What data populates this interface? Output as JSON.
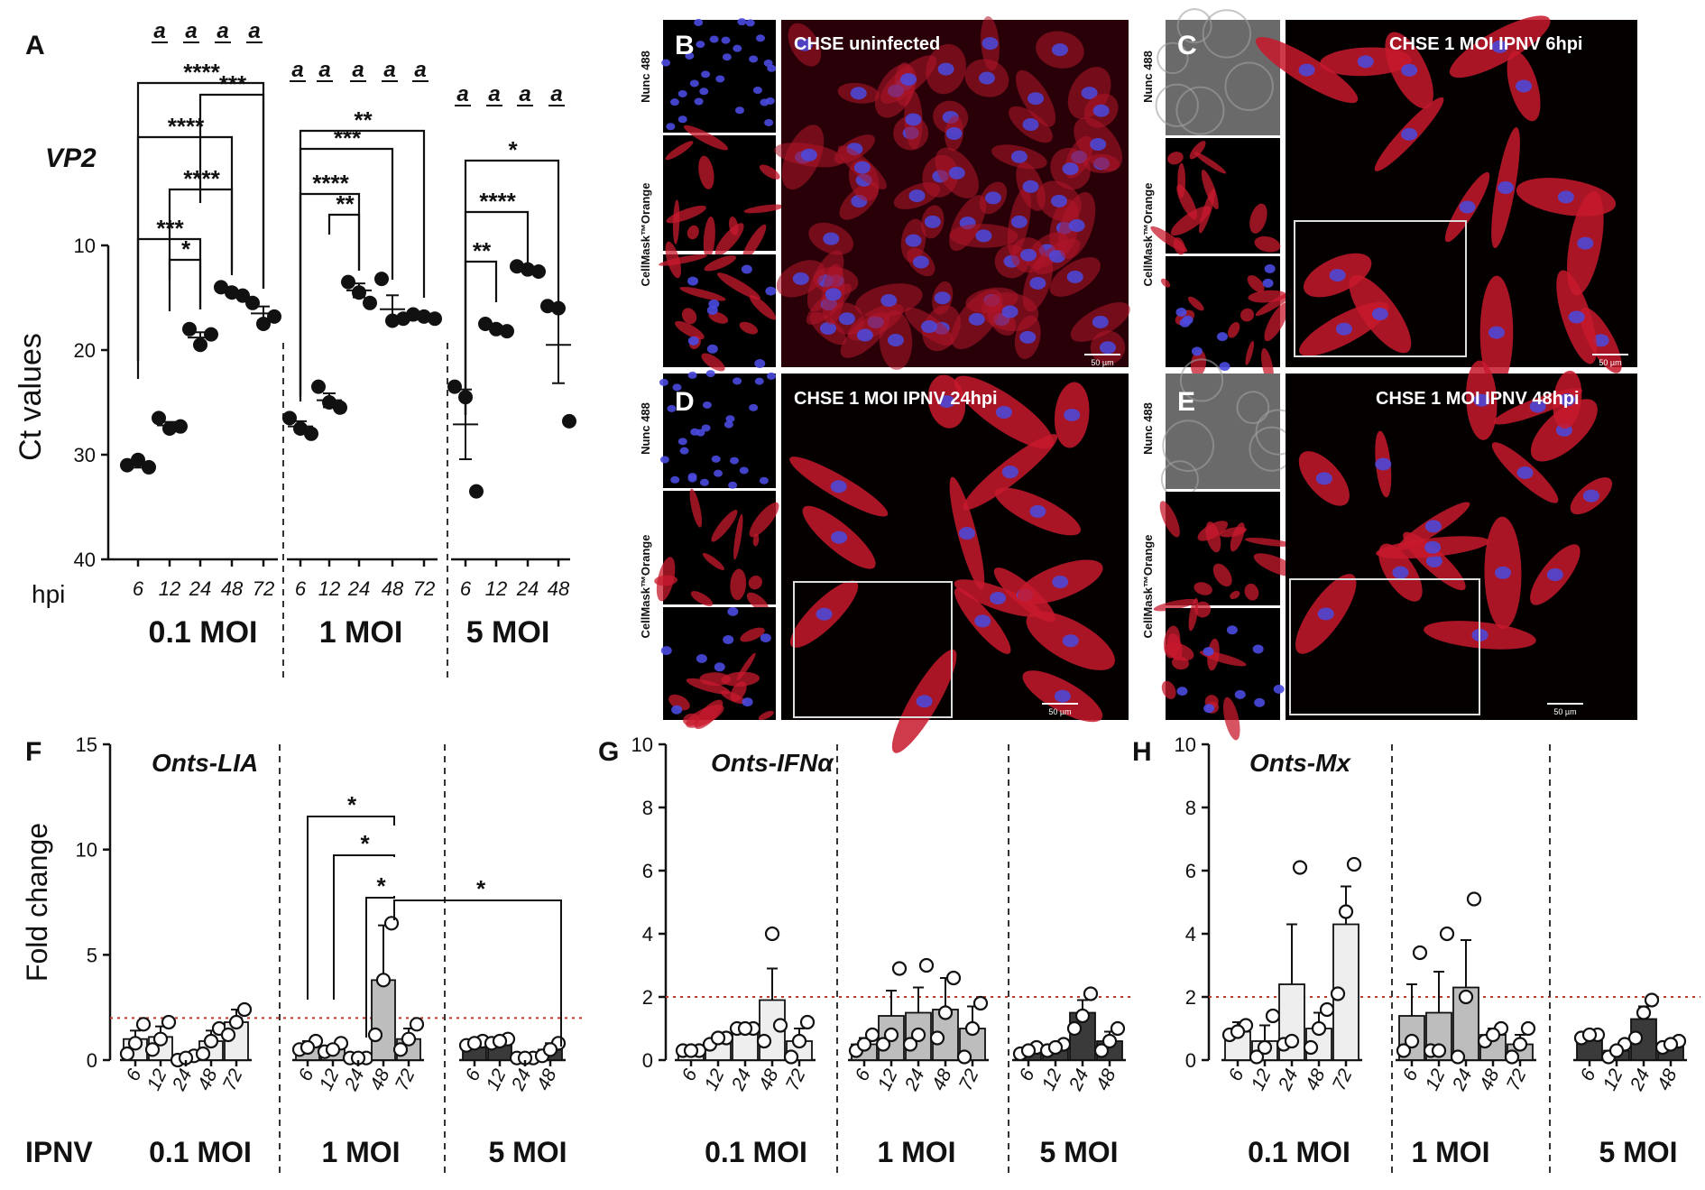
{
  "panel_letters": {
    "A": "A",
    "B": "B",
    "C": "C",
    "D": "D",
    "E": "E",
    "F": "F",
    "G": "G",
    "H": "H"
  },
  "colors": {
    "point": "#111111",
    "bar_01": "#eeeeee",
    "bar_1": "#bdbdbd",
    "bar_5": "#3a3a3a",
    "threshold": "#c0392b",
    "cell_red": "#c8192d",
    "nucleus_blue": "#4a4ae0"
  },
  "chart_data": [
    {
      "id": "A",
      "type": "scatter",
      "title": "VP2",
      "ylabel": "Ct values",
      "ylim": [
        40,
        10
      ],
      "yticks": [
        "10",
        "20",
        "30",
        "40"
      ],
      "x_prefix": "hpi",
      "grid": false,
      "groups": [
        {
          "label": "0.1 MOI",
          "timepoints": [
            "6",
            "12",
            "24",
            "48",
            "72"
          ],
          "points": [
            [
              31,
              30.5,
              31.2
            ],
            [
              26.5,
              27.5,
              27.3
            ],
            [
              18,
              19.5,
              18.5
            ],
            [
              14,
              14.5,
              14.8
            ],
            [
              15.5,
              17.5,
              16.8
            ]
          ],
          "means": [
            31,
            27.2,
            18.8,
            14.5,
            16.5
          ]
        },
        {
          "label": "1 MOI",
          "timepoints": [
            "6",
            "12",
            "24",
            "48",
            "72"
          ],
          "points": [
            [
              26.5,
              27.5,
              28
            ],
            [
              23.5,
              25,
              25.5
            ],
            [
              13.5,
              14.5,
              15.5
            ],
            [
              13.2,
              17.2,
              17
            ],
            [
              16.6,
              16.8,
              17
            ]
          ],
          "means": [
            27.3,
            24.8,
            14.3,
            16.1,
            16.8
          ]
        },
        {
          "label": "5 MOI",
          "timepoints": [
            "6",
            "12",
            "24",
            "48"
          ],
          "points": [
            [
              23.5,
              24.5,
              33.5
            ],
            [
              17.5,
              18,
              18.2
            ],
            [
              12,
              12.3,
              12.5
            ],
            [
              15.8,
              16,
              26.8
            ]
          ],
          "means": [
            27.1,
            17.9,
            12.3,
            19.5
          ]
        }
      ],
      "significance_marks": [
        "a",
        "a",
        "a",
        "a",
        "a",
        "a",
        "a",
        "a",
        "a",
        "a",
        "a",
        "a",
        "a"
      ],
      "brackets_labels": [
        "****",
        "***",
        "****",
        "****",
        "***",
        "*",
        "**",
        "***",
        "****",
        "**",
        "*",
        "****",
        "**"
      ]
    },
    {
      "id": "F",
      "type": "bar",
      "title": "Onts-LIA",
      "ylabel": "Fold change",
      "ylim": [
        0,
        15
      ],
      "yticks": [
        "0",
        "5",
        "10",
        "15"
      ],
      "threshold": 2,
      "row_label": "IPNV",
      "groups": [
        {
          "label": "0.1 MOI",
          "timepoints": [
            "6",
            "12",
            "24",
            "48",
            "72"
          ],
          "means": [
            1,
            1.1,
            0.1,
            0.9,
            1.8
          ],
          "err": [
            0.4,
            0.5,
            0.1,
            0.5,
            0.6
          ],
          "points": [
            [
              0.3,
              1.7,
              0.8
            ],
            [
              0.5,
              1.8,
              1.0
            ],
            [
              0,
              0.2,
              0.1
            ],
            [
              0.3,
              1.5,
              0.9
            ],
            [
              1.2,
              2.4,
              1.8
            ]
          ]
        },
        {
          "label": "1 MOI",
          "timepoints": [
            "6",
            "12",
            "24",
            "48",
            "72"
          ],
          "means": [
            0.7,
            0.6,
            0.1,
            3.8,
            1.0
          ],
          "err": [
            0.2,
            0.1,
            0.05,
            2.6,
            0.5
          ],
          "points": [
            [
              0.5,
              0.9,
              0.6
            ],
            [
              0.4,
              0.8,
              0.5
            ],
            [
              0.1,
              0.1,
              0.1
            ],
            [
              1.2,
              6.5,
              3.8
            ],
            [
              0.5,
              1.7,
              1.0
            ]
          ]
        },
        {
          "label": "5 MOI",
          "timepoints": [
            "6",
            "12",
            "24",
            "48"
          ],
          "means": [
            0.8,
            0.9,
            0.1,
            0.5
          ],
          "err": [
            0.1,
            0.1,
            0.05,
            0.3
          ],
          "points": [
            [
              0.7,
              0.9,
              0.8
            ],
            [
              0.8,
              1.0,
              0.9
            ],
            [
              0.1,
              0.1,
              0.1
            ],
            [
              0.2,
              0.8,
              0.5
            ]
          ]
        }
      ],
      "brackets_labels": [
        "*",
        "*",
        "*",
        "*"
      ]
    },
    {
      "id": "G",
      "type": "bar",
      "title": "Onts-IFNα",
      "ylabel": "",
      "ylim": [
        0,
        10
      ],
      "yticks": [
        "0",
        "2",
        "4",
        "6",
        "8",
        "10"
      ],
      "threshold": 2,
      "groups": [
        {
          "label": "0.1 MOI",
          "timepoints": [
            "6",
            "12",
            "24",
            "48",
            "72"
          ],
          "means": [
            0.3,
            0.6,
            1.0,
            1.9,
            0.6
          ],
          "err": [
            0.05,
            0.1,
            0.05,
            1.0,
            0.4
          ],
          "points": [
            [
              0.3,
              0.3,
              0.3
            ],
            [
              0.5,
              0.7,
              0.7
            ],
            [
              1.0,
              1.0,
              1.0
            ],
            [
              0.6,
              1.1,
              4.0
            ],
            [
              0.1,
              1.2,
              0.6
            ]
          ]
        },
        {
          "label": "1 MOI",
          "timepoints": [
            "6",
            "12",
            "24",
            "48",
            "72"
          ],
          "means": [
            0.5,
            1.4,
            1.5,
            1.6,
            1.0
          ],
          "err": [
            0.2,
            0.8,
            0.8,
            1.0,
            0.7
          ],
          "points": [
            [
              0.3,
              0.8,
              0.5
            ],
            [
              0.5,
              2.9,
              0.8
            ],
            [
              0.5,
              3.0,
              0.8
            ],
            [
              0.7,
              2.6,
              1.5
            ],
            [
              0.1,
              1.8,
              1.0
            ]
          ]
        },
        {
          "label": "5 MOI",
          "timepoints": [
            "6",
            "12",
            "24",
            "48"
          ],
          "means": [
            0.3,
            0.4,
            1.5,
            0.6
          ],
          "err": [
            0.1,
            0.1,
            0.4,
            0.3
          ],
          "points": [
            [
              0.2,
              0.4,
              0.3
            ],
            [
              0.3,
              0.5,
              0.4
            ],
            [
              1.0,
              2.1,
              1.4
            ],
            [
              0.3,
              1.0,
              0.6
            ]
          ]
        }
      ]
    },
    {
      "id": "H",
      "type": "bar",
      "title": "Onts-Mx",
      "ylabel": "",
      "ylim": [
        0,
        10
      ],
      "yticks": [
        "0",
        "2",
        "4",
        "6",
        "8",
        "10"
      ],
      "threshold": 2,
      "groups": [
        {
          "label": "0.1 MOI",
          "timepoints": [
            "6",
            "12",
            "24",
            "48",
            "72"
          ],
          "means": [
            0.9,
            0.6,
            2.4,
            1.0,
            4.3
          ],
          "err": [
            0.3,
            0.5,
            1.9,
            0.5,
            1.2
          ],
          "points": [
            [
              0.8,
              1.1,
              0.9
            ],
            [
              0.1,
              1.4,
              0.4
            ],
            [
              0.5,
              6.1,
              0.6
            ],
            [
              0.4,
              1.6,
              1.0
            ],
            [
              2.1,
              6.2,
              4.7
            ]
          ]
        },
        {
          "label": "1 MOI",
          "timepoints": [
            "6",
            "12",
            "24",
            "48",
            "72"
          ],
          "means": [
            1.4,
            1.5,
            2.3,
            0.8,
            0.5
          ],
          "err": [
            1.0,
            1.3,
            1.5,
            0.2,
            0.3
          ],
          "points": [
            [
              0.3,
              3.4,
              0.6
            ],
            [
              0.3,
              4.0,
              0.3
            ],
            [
              0.1,
              5.1,
              2.0
            ],
            [
              0.6,
              1.0,
              0.8
            ],
            [
              0.1,
              1.0,
              0.5
            ]
          ]
        },
        {
          "label": "5 MOI",
          "timepoints": [
            "6",
            "12",
            "24",
            "48"
          ],
          "means": [
            0.8,
            0.3,
            1.3,
            0.5
          ],
          "err": [
            0.05,
            0.1,
            0.4,
            0.1
          ],
          "points": [
            [
              0.7,
              0.8,
              0.8
            ],
            [
              0.1,
              0.5,
              0.3
            ],
            [
              0.7,
              1.9,
              1.5
            ],
            [
              0.4,
              0.6,
              0.5
            ]
          ]
        }
      ]
    }
  ],
  "micro": {
    "side_label_top": "Nunc 488",
    "side_label_bottom": "CellMask™Orange",
    "B_title": "CHSE uninfected",
    "C_title": "CHSE 1 MOI IPNV 6hpi",
    "D_title": "CHSE 1 MOI IPNV 24hpi",
    "E_title": "CHSE 1 MOI IPNV 48hpi",
    "scale": "50 µm"
  }
}
